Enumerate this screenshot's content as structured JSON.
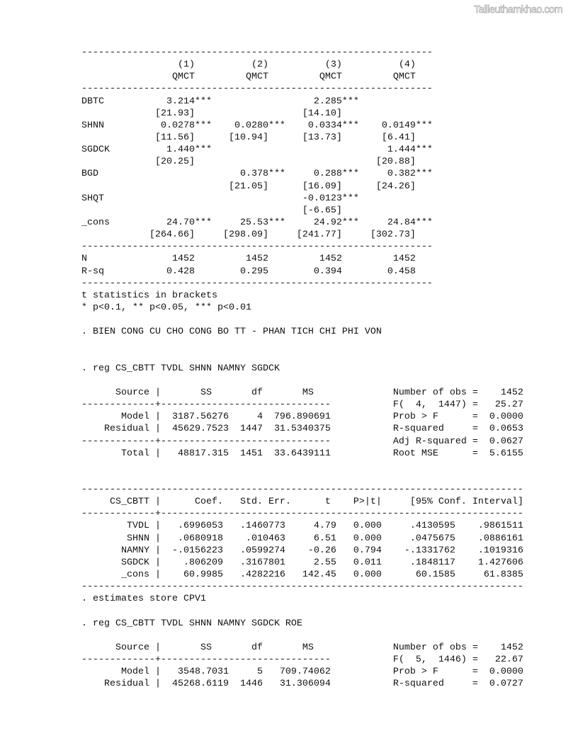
{
  "watermark": "Tailieuthamkhao.com",
  "esttab": {
    "columns": [
      {
        "number": "(1)",
        "depvar": "QMCT"
      },
      {
        "number": "(2)",
        "depvar": "QMCT"
      },
      {
        "number": "(3)",
        "depvar": "QMCT"
      },
      {
        "number": "(4)",
        "depvar": "QMCT"
      }
    ],
    "rows": [
      {
        "label": "DBTC",
        "coefs": [
          "3.214***",
          "",
          "2.285***",
          ""
        ],
        "tstats": [
          "[21.93]",
          "",
          "[14.10]",
          ""
        ]
      },
      {
        "label": "SHNN",
        "coefs": [
          "0.0278***",
          "0.0280***",
          "0.0334***",
          "0.0149***"
        ],
        "tstats": [
          "[11.56]",
          "[10.94]",
          "[13.73]",
          "[6.41]"
        ]
      },
      {
        "label": "SGDCK",
        "coefs": [
          "1.440***",
          "",
          "",
          "1.444***"
        ],
        "tstats": [
          "[20.25]",
          "",
          "",
          "[20.88]"
        ]
      },
      {
        "label": "BGD",
        "coefs": [
          "",
          "0.378***",
          "0.288***",
          "0.382***"
        ],
        "tstats": [
          "",
          "[21.05]",
          "[16.09]",
          "[24.26]"
        ]
      },
      {
        "label": "SHQT",
        "coefs": [
          "",
          "",
          "-0.0123***",
          ""
        ],
        "tstats": [
          "",
          "",
          "[-6.65]",
          ""
        ]
      },
      {
        "label": "_cons",
        "coefs": [
          "24.70***",
          "25.53***",
          "24.92***",
          "24.84***"
        ],
        "tstats": [
          "[264.66]",
          "[298.09]",
          "[241.77]",
          "[302.73]"
        ]
      }
    ],
    "stats": [
      {
        "label": "N",
        "values": [
          "1452",
          "1452",
          "1452",
          "1452"
        ]
      },
      {
        "label": "R-sq",
        "values": [
          "0.428",
          "0.295",
          "0.394",
          "0.458"
        ]
      }
    ],
    "notes": [
      "t statistics in brackets",
      "* p<0.1, ** p<0.05, *** p<0.01"
    ]
  },
  "commands": {
    "comment": ". BIEN CONG CU CHO CONG BO TT - PHAN TICH CHI PHI VON",
    "reg1": ". reg CS_CBTT TVDL SHNN NAMNY SGDCK",
    "store": ". estimates store CPV1",
    "reg2": ". reg CS_CBTT TVDL SHNN NAMNY SGDCK ROE"
  },
  "anova_headers": {
    "source": "Source",
    "ss": "SS",
    "df": "df",
    "ms": "MS"
  },
  "coef_headers": {
    "coef": "Coef.",
    "se": "Std. Err.",
    "t": "t",
    "p": "P>|t|",
    "ci": "[95% Conf. Interval]"
  },
  "reg1": {
    "anova": [
      {
        "source": "Model",
        "ss": "3187.56276",
        "df": "4",
        "ms": "796.890691"
      },
      {
        "source": "Residual",
        "ss": "45629.7523",
        "df": "1447",
        "ms": "31.5340375"
      },
      {
        "source": "Total",
        "ss": "48817.315",
        "df": "1451",
        "ms": "33.6439111"
      }
    ],
    "fit": [
      {
        "label": "Number of obs",
        "value": "1452"
      },
      {
        "label": "F(  4,  1447)",
        "value": "25.27"
      },
      {
        "label": "Prob > F",
        "value": "0.0000"
      },
      {
        "label": "R-squared",
        "value": "0.0653"
      },
      {
        "label": "Adj R-squared",
        "value": "0.0627"
      },
      {
        "label": "Root MSE",
        "value": "5.6155"
      }
    ],
    "depvar": "CS_CBTT",
    "coefs": [
      {
        "var": "TVDL",
        "coef": ".6996053",
        "se": ".1460773",
        "t": "4.79",
        "p": "0.000",
        "lo": ".4130595",
        "hi": ".9861511"
      },
      {
        "var": "SHNN",
        "coef": ".0680918",
        "se": ".010463",
        "t": "6.51",
        "p": "0.000",
        "lo": ".0475675",
        "hi": ".0886161"
      },
      {
        "var": "NAMNY",
        "coef": "-.0156223",
        "se": ".0599274",
        "t": "-0.26",
        "p": "0.794",
        "lo": "-.1331762",
        "hi": ".1019316"
      },
      {
        "var": "SGDCK",
        "coef": ".806209",
        "se": ".3167801",
        "t": "2.55",
        "p": "0.011",
        "lo": ".1848117",
        "hi": "1.427606"
      },
      {
        "var": "_cons",
        "coef": "60.9985",
        "se": ".4282216",
        "t": "142.45",
        "p": "0.000",
        "lo": "60.1585",
        "hi": "61.8385"
      }
    ]
  },
  "reg2": {
    "anova": [
      {
        "source": "Model",
        "ss": "3548.7031",
        "df": "5",
        "ms": "709.74062"
      },
      {
        "source": "Residual",
        "ss": "45268.6119",
        "df": "1446",
        "ms": "31.306094"
      }
    ],
    "fit": [
      {
        "label": "Number of obs",
        "value": "1452"
      },
      {
        "label": "F(  5,  1446)",
        "value": "22.67"
      },
      {
        "label": "Prob > F",
        "value": "0.0000"
      },
      {
        "label": "R-squared",
        "value": "0.0727"
      }
    ]
  }
}
